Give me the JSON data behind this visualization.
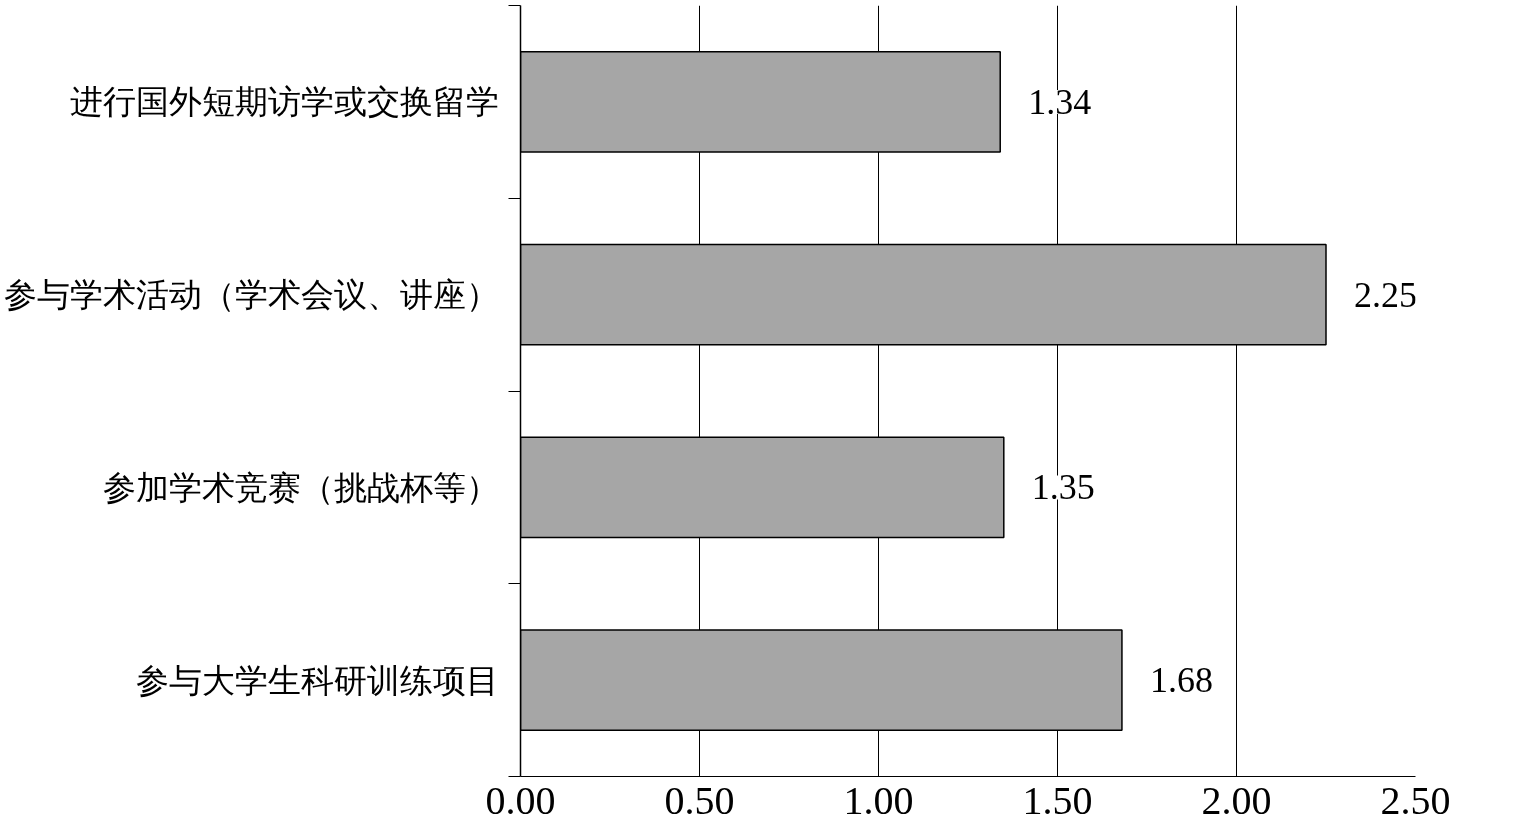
{
  "chart_data": {
    "type": "bar",
    "orientation": "horizontal",
    "categories": [
      "进行国外短期访学或交换留学",
      "参与学术活动（学术会议、讲座）",
      "参加学术竞赛（挑战杯等）",
      "参与大学生科研训练项目"
    ],
    "values": [
      1.34,
      2.25,
      1.35,
      1.68
    ],
    "color": "#a6a6a6",
    "xlim": [
      0,
      2.5
    ],
    "xticks": [
      {
        "value": 0,
        "label": "0.00"
      },
      {
        "value": 0.5,
        "label": "0.50"
      },
      {
        "value": 1,
        "label": "1.00"
      },
      {
        "value": 1.5,
        "label": "1.50"
      },
      {
        "value": 2,
        "label": "2.00"
      },
      {
        "value": 2.5,
        "label": "2.50"
      }
    ],
    "grid": "x",
    "data_labels": true
  }
}
